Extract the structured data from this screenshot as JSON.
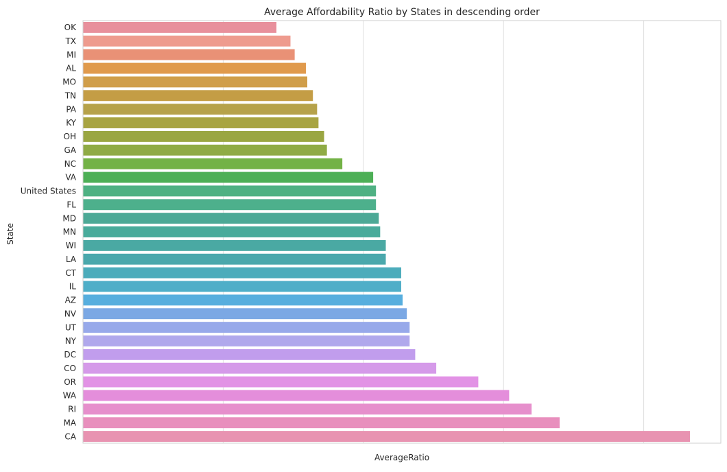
{
  "chart_data": {
    "type": "bar",
    "orientation": "horizontal",
    "title": "Average Affordability Ratio by States in descending order",
    "xlabel": "AverageRatio",
    "ylabel": "State",
    "grid": true,
    "x_tick_labels": [],
    "xlim": [
      0,
      4.55
    ],
    "x_gridlines": [
      1,
      2,
      3,
      4
    ],
    "categories": [
      "OK",
      "TX",
      "MI",
      "AL",
      "MO",
      "TN",
      "PA",
      "KY",
      "OH",
      "GA",
      "NC",
      "VA",
      "United States",
      "FL",
      "MD",
      "MN",
      "WI",
      "LA",
      "CT",
      "IL",
      "AZ",
      "NV",
      "UT",
      "NY",
      "DC",
      "CO",
      "OR",
      "WA",
      "RI",
      "MA",
      "CA"
    ],
    "values": [
      1.38,
      1.48,
      1.51,
      1.59,
      1.6,
      1.64,
      1.67,
      1.68,
      1.72,
      1.74,
      1.85,
      2.07,
      2.09,
      2.09,
      2.11,
      2.12,
      2.16,
      2.16,
      2.27,
      2.27,
      2.28,
      2.31,
      2.33,
      2.33,
      2.37,
      2.52,
      2.82,
      3.04,
      3.2,
      3.4,
      4.33
    ],
    "colors": [
      "#e8909c",
      "#ee9b8e",
      "#e99176",
      "#e09a4c",
      "#d09e4a",
      "#c49d45",
      "#b6a24a",
      "#a8a441",
      "#9aa642",
      "#8fab45",
      "#73b246",
      "#4daf56",
      "#4fb183",
      "#4db08c",
      "#4ca996",
      "#49ab9b",
      "#4aa9a3",
      "#4aa8ac",
      "#4cacbb",
      "#4faec8",
      "#57aede",
      "#7ba8e4",
      "#97a9ea",
      "#b0a8ec",
      "#c19ded",
      "#d59ae9",
      "#e292e5",
      "#e48edb",
      "#e68fcc",
      "#e88fbd",
      "#e893b1"
    ]
  }
}
